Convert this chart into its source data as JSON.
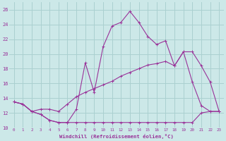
{
  "xlabel": "Windchill (Refroidissement éolien,°C)",
  "bg_color": "#cce8e8",
  "grid_color": "#aad0d0",
  "line_color": "#993399",
  "xlim": [
    -0.5,
    23.5
  ],
  "ylim": [
    10,
    27
  ],
  "xticks": [
    0,
    1,
    2,
    3,
    4,
    5,
    6,
    7,
    8,
    9,
    10,
    11,
    12,
    13,
    14,
    15,
    16,
    17,
    18,
    19,
    20,
    21,
    22,
    23
  ],
  "yticks": [
    10,
    12,
    14,
    16,
    18,
    20,
    22,
    24,
    26
  ],
  "line1_x": [
    0,
    1,
    2,
    3,
    4,
    5,
    6,
    7,
    8,
    9,
    10,
    11,
    12,
    13,
    14,
    15,
    16,
    17,
    18,
    19,
    20,
    21,
    22,
    23
  ],
  "line1_y": [
    13.5,
    13.2,
    12.2,
    11.8,
    11.0,
    10.7,
    10.7,
    10.7,
    10.7,
    10.7,
    10.7,
    10.7,
    10.7,
    10.7,
    10.7,
    10.7,
    10.7,
    10.7,
    10.7,
    10.7,
    10.7,
    12.0,
    12.2,
    12.2
  ],
  "line2_x": [
    0,
    1,
    2,
    3,
    4,
    5,
    6,
    7,
    8,
    9,
    10,
    11,
    12,
    13,
    14,
    15,
    16,
    17,
    18,
    19,
    20,
    21,
    22,
    23
  ],
  "line2_y": [
    13.5,
    13.2,
    12.2,
    11.8,
    11.0,
    10.7,
    10.7,
    12.5,
    18.8,
    14.8,
    21.0,
    23.8,
    24.3,
    25.8,
    24.3,
    22.4,
    21.3,
    21.8,
    18.4,
    20.3,
    16.2,
    13.0,
    12.2,
    12.2
  ],
  "line3_x": [
    0,
    1,
    2,
    3,
    4,
    5,
    6,
    7,
    8,
    9,
    10,
    11,
    12,
    13,
    14,
    15,
    16,
    17,
    18,
    19,
    20,
    21,
    22,
    23
  ],
  "line3_y": [
    13.5,
    13.2,
    12.2,
    12.5,
    12.5,
    12.2,
    13.2,
    14.2,
    14.8,
    15.3,
    15.8,
    16.3,
    17.0,
    17.5,
    18.0,
    18.5,
    18.7,
    19.0,
    18.4,
    20.3,
    20.3,
    18.4,
    16.2,
    12.2
  ]
}
